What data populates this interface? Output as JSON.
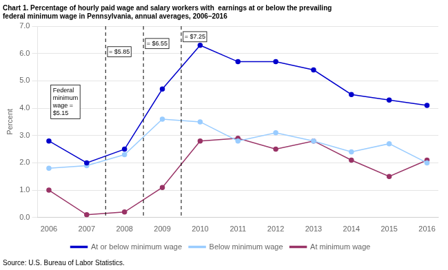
{
  "chart_data": {
    "type": "line",
    "title": [
      "Chart 1. Percentage of hourly paid wage and salary workers with  earnings at or below the prevailing",
      "federal minimum wage in Pennsylvania, annual averages, 2006–2016"
    ],
    "ylabel": "Percent",
    "source": "Source: U.S. Bureau of Labor Statistics.",
    "x": [
      2006,
      2007,
      2008,
      2009,
      2010,
      2011,
      2012,
      2013,
      2014,
      2015,
      2016
    ],
    "series": [
      {
        "name": "At or below minimum wage",
        "color": "#0000CC",
        "marker": "circle",
        "values": [
          2.8,
          2.0,
          2.5,
          4.7,
          6.3,
          5.7,
          5.7,
          5.4,
          4.5,
          4.3,
          4.1
        ]
      },
      {
        "name": "Below minimum wage",
        "color": "#99CCFF",
        "marker": "circle",
        "values": [
          1.8,
          1.9,
          2.3,
          3.6,
          3.5,
          2.8,
          3.1,
          2.8,
          2.4,
          2.7,
          2.0
        ]
      },
      {
        "name": "At minimum wage",
        "color": "#993366",
        "marker": "circle",
        "values": [
          1.0,
          0.1,
          0.2,
          1.1,
          2.8,
          2.9,
          2.5,
          2.8,
          2.1,
          1.5,
          2.1
        ]
      }
    ],
    "xlim": [
      2005.7,
      2016.3
    ],
    "xticks": [
      2006,
      2007,
      2008,
      2009,
      2010,
      2011,
      2012,
      2013,
      2014,
      2015,
      2016
    ],
    "ylim": [
      0.0,
      7.0
    ],
    "yticks": [
      {
        "value": 0,
        "label": "0.0"
      },
      {
        "value": 1,
        "label": "1.0"
      },
      {
        "value": 2,
        "label": "2.0"
      },
      {
        "value": 3,
        "label": "3.0"
      },
      {
        "value": 4,
        "label": "4.0"
      },
      {
        "value": 5,
        "label": "5.0"
      },
      {
        "value": 6,
        "label": "6.0"
      },
      {
        "value": 7,
        "label": "7.0"
      }
    ],
    "grid": "y",
    "legend": "bottom",
    "vlines": [
      {
        "x": 2007.5,
        "label": "= $5.85",
        "label_x": 2007.55,
        "label_y": 6.25
      },
      {
        "x": 2008.5,
        "label": "= $6.55",
        "label_x": 2008.55,
        "label_y": 6.55
      },
      {
        "x": 2009.5,
        "label": "= $7.25",
        "label_x": 2009.55,
        "label_y": 6.8
      }
    ],
    "annotations": [
      {
        "text": "Federal\nminimum\nwage =\n$5.15",
        "x": 2006.05,
        "y": 4.85
      }
    ]
  }
}
